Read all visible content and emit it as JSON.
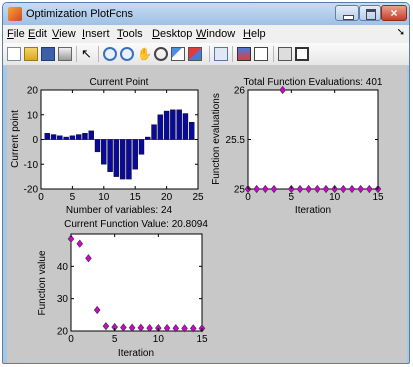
{
  "window": {
    "title": "Optimization PlotFcns"
  },
  "menu": [
    {
      "ul": "F",
      "rest": "ile"
    },
    {
      "ul": "E",
      "rest": "dit"
    },
    {
      "ul": "V",
      "rest": "iew"
    },
    {
      "ul": "I",
      "rest": "nsert"
    },
    {
      "ul": "T",
      "rest": "ools"
    },
    {
      "ul": "D",
      "rest": "esktop"
    },
    {
      "ul": "W",
      "rest": "indow"
    },
    {
      "ul": "H",
      "rest": "elp"
    }
  ],
  "toolbar_icons": [
    "new-figure-icon",
    "open-file-icon",
    "save-icon",
    "print-icon",
    "pointer-icon",
    "zoom-in-icon",
    "zoom-out-icon",
    "pan-icon",
    "rotate-icon",
    "data-cursor-icon",
    "brush-icon",
    "link-icon",
    "colorbar-icon",
    "legend-icon",
    "hide-plot-tools-icon",
    "show-plot-tools-icon"
  ],
  "colors": {
    "bar": "#0a0a9a",
    "marker": "#d400d4",
    "marker_edge": "#333333"
  },
  "chart_data": [
    {
      "type": "bar",
      "title": "Current Point",
      "xlabel": "Number of variables: 24",
      "ylabel": "Current point",
      "xlim": [
        0,
        25
      ],
      "ylim": [
        -20,
        20
      ],
      "xticks": [
        0,
        5,
        10,
        15,
        20,
        25
      ],
      "yticks": [
        -20,
        -10,
        0,
        10,
        20
      ],
      "x": [
        1,
        2,
        3,
        4,
        5,
        6,
        7,
        8,
        9,
        10,
        11,
        12,
        13,
        14,
        15,
        16,
        17,
        18,
        19,
        20,
        21,
        22,
        23,
        24
      ],
      "values": [
        2.5,
        2,
        1.5,
        1,
        1.5,
        2,
        2.5,
        3.5,
        -5,
        -10,
        -13,
        -15,
        -16,
        -16,
        -12,
        -6,
        1,
        6,
        10,
        11.5,
        12,
        12,
        10.5,
        7
      ]
    },
    {
      "type": "scatter",
      "title": "Total Function Evaluations: 401",
      "xlabel": "Iteration",
      "ylabel": "Function evaluations",
      "xlim": [
        0,
        15
      ],
      "ylim": [
        25,
        26
      ],
      "xticks": [
        0,
        5,
        10,
        15
      ],
      "yticks": [
        25,
        25.5,
        26
      ],
      "ytick_labels": [
        "25",
        "25.5",
        "26"
      ],
      "x": [
        0,
        1,
        2,
        3,
        4,
        5,
        6,
        7,
        8,
        9,
        10,
        11,
        12,
        13,
        14,
        15
      ],
      "y": [
        25,
        25,
        25,
        25,
        26,
        25,
        25,
        25,
        25,
        25,
        25,
        25,
        25,
        25,
        25,
        25
      ]
    },
    {
      "type": "scatter",
      "title": "Current Function Value: 20.8094",
      "xlabel": "Iteration",
      "ylabel": "Function value",
      "xlim": [
        0,
        15
      ],
      "ylim": [
        20,
        50
      ],
      "xticks": [
        0,
        5,
        10,
        15
      ],
      "yticks": [
        20,
        30,
        40
      ],
      "x": [
        0,
        1,
        2,
        3,
        4,
        5,
        6,
        7,
        8,
        9,
        10,
        11,
        12,
        13,
        14,
        15
      ],
      "y": [
        48.5,
        47,
        42.5,
        26.5,
        21.5,
        21.2,
        21.1,
        21,
        21,
        20.9,
        20.9,
        20.9,
        20.85,
        20.82,
        20.81,
        20.8094
      ]
    }
  ]
}
